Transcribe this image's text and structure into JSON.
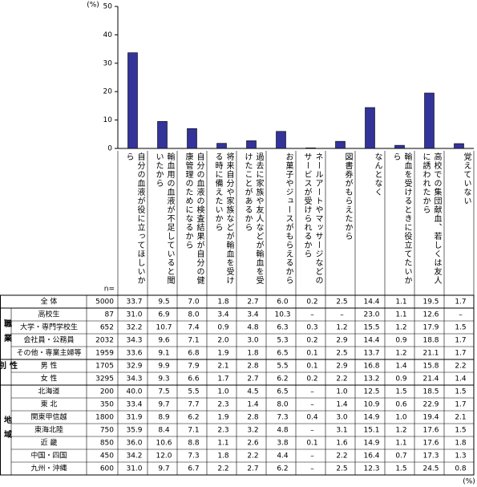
{
  "chart_data": {
    "type": "bar",
    "y_unit": "(%)",
    "categories": [
      "自分の血液が役に立ってほしいから",
      "輸血用の血液が不足していると聞いたから",
      "自分の血液の検査結果が自分の健康管理のためになるから",
      "将来自分や家族などが輸血を受ける時に備えたいから",
      "過去に家族や友人などが輸血を受けたことがあるから",
      "お菓子やジュースがもらえるから",
      "ネールアートやマッサージなどのサービスが受けられるから",
      "図書券がもらえたから",
      "なんとなく",
      "輸血を受けるときに役立てたいから",
      "高校での集団献血、若しくは友人に誘われたから",
      "覚えていない"
    ],
    "values": [
      33.7,
      9.5,
      7.0,
      1.8,
      2.7,
      6.0,
      0.2,
      2.5,
      14.4,
      1.1,
      19.5,
      1.7
    ],
    "color": "#333399",
    "ylim": [
      0,
      50
    ],
    "yticks": [
      0,
      10,
      20,
      30,
      40,
      50
    ]
  },
  "table": {
    "n_label": "n=",
    "unit": "(%)",
    "total": {
      "label": "全 体",
      "n": "5000",
      "cells": [
        "33.7",
        "9.5",
        "7.0",
        "1.8",
        "2.7",
        "6.0",
        "0.2",
        "2.5",
        "14.4",
        "1.1",
        "19.5",
        "1.7"
      ]
    },
    "groups": [
      {
        "label": "職業",
        "rows": [
          {
            "label": "高校生",
            "n": "87",
            "cells": [
              "31.0",
              "6.9",
              "8.0",
              "3.4",
              "3.4",
              "10.3",
              "–",
              "–",
              "23.0",
              "1.1",
              "12.6",
              "–"
            ]
          },
          {
            "label": "大学・専門学校生",
            "n": "652",
            "cells": [
              "32.2",
              "10.7",
              "7.4",
              "0.9",
              "4.8",
              "6.3",
              "0.3",
              "1.2",
              "15.5",
              "1.2",
              "17.9",
              "1.5"
            ]
          },
          {
            "label": "会社員・公務員",
            "n": "2032",
            "cells": [
              "34.3",
              "9.6",
              "7.1",
              "2.0",
              "3.0",
              "5.3",
              "0.2",
              "2.9",
              "14.4",
              "0.9",
              "18.8",
              "1.7"
            ]
          },
          {
            "label": "その他・専業主婦等",
            "n": "1959",
            "cells": [
              "33.6",
              "9.1",
              "6.8",
              "1.9",
              "1.8",
              "6.5",
              "0.1",
              "2.5",
              "13.7",
              "1.2",
              "21.1",
              "1.7"
            ]
          }
        ]
      },
      {
        "label": "性別",
        "rows": [
          {
            "label": "男 性",
            "n": "1705",
            "cells": [
              "32.9",
              "9.9",
              "7.9",
              "2.1",
              "2.8",
              "5.5",
              "0.1",
              "2.9",
              "16.8",
              "1.4",
              "15.8",
              "2.2"
            ]
          },
          {
            "label": "女 性",
            "n": "3295",
            "cells": [
              "34.3",
              "9.3",
              "6.6",
              "1.7",
              "2.7",
              "6.2",
              "0.2",
              "2.2",
              "13.2",
              "0.9",
              "21.4",
              "1.4"
            ]
          }
        ]
      },
      {
        "label": "地域",
        "rows": [
          {
            "label": "北海道",
            "n": "200",
            "cells": [
              "40.0",
              "7.5",
              "5.5",
              "1.0",
              "4.5",
              "6.5",
              "–",
              "1.0",
              "12.5",
              "1.5",
              "18.5",
              "1.5"
            ]
          },
          {
            "label": "東 北",
            "n": "350",
            "cells": [
              "33.4",
              "9.7",
              "7.7",
              "2.3",
              "1.4",
              "8.0",
              "–",
              "1.4",
              "10.9",
              "0.6",
              "22.9",
              "1.7"
            ]
          },
          {
            "label": "関東甲信越",
            "n": "1800",
            "cells": [
              "31.9",
              "8.9",
              "6.2",
              "1.9",
              "2.8",
              "7.3",
              "0.4",
              "3.0",
              "14.9",
              "1.0",
              "19.4",
              "2.1"
            ]
          },
          {
            "label": "東海北陸",
            "n": "750",
            "cells": [
              "35.9",
              "8.4",
              "7.1",
              "2.3",
              "3.2",
              "4.8",
              "–",
              "3.1",
              "15.1",
              "1.2",
              "17.6",
              "1.5"
            ]
          },
          {
            "label": "近 畿",
            "n": "850",
            "cells": [
              "36.0",
              "10.6",
              "8.8",
              "1.1",
              "2.6",
              "3.8",
              "0.1",
              "1.6",
              "14.9",
              "1.1",
              "17.6",
              "1.8"
            ]
          },
          {
            "label": "中国・四国",
            "n": "450",
            "cells": [
              "34.2",
              "12.0",
              "7.3",
              "1.8",
              "2.2",
              "4.4",
              "–",
              "2.2",
              "16.4",
              "0.7",
              "17.3",
              "1.3"
            ]
          },
          {
            "label": "九州・沖縄",
            "n": "600",
            "cells": [
              "31.0",
              "9.7",
              "6.7",
              "2.2",
              "2.7",
              "6.2",
              "–",
              "2.5",
              "12.3",
              "1.5",
              "24.5",
              "0.8"
            ]
          }
        ]
      }
    ]
  }
}
